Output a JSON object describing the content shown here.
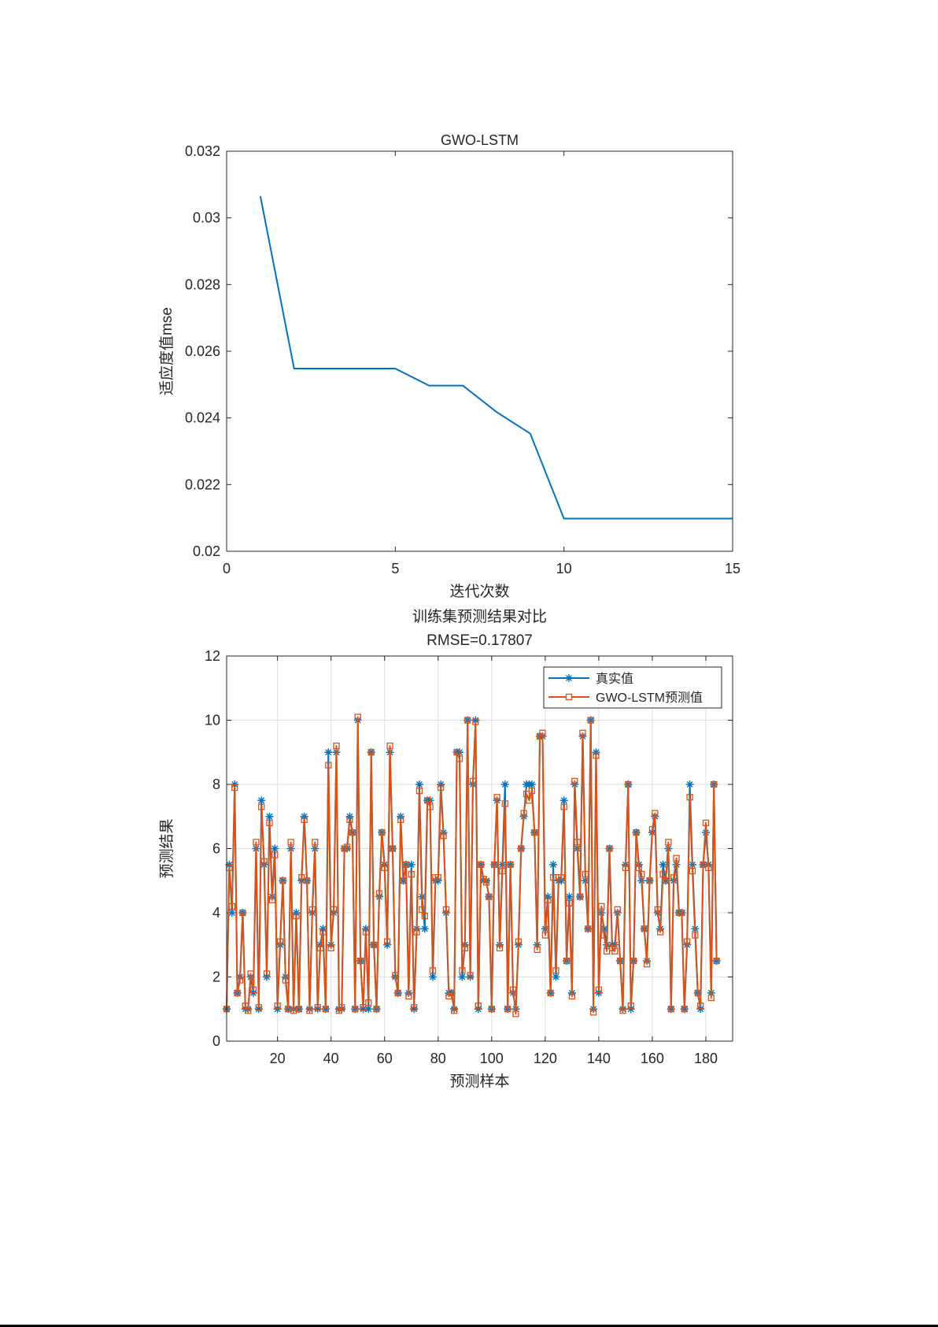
{
  "colors": {
    "series_blue": "#0072BD",
    "series_orange": "#D95319",
    "axis": "#262626",
    "grid": "#dfdfdf"
  },
  "chart_data": [
    {
      "type": "line",
      "title": "GWO-LSTM",
      "xlabel": "迭代次数",
      "ylabel": "适应度值mse",
      "xlim": [
        0,
        15
      ],
      "ylim": [
        0.02,
        0.032
      ],
      "x_ticks": [
        0,
        5,
        10,
        15
      ],
      "x_tick_labels": [
        "0",
        "5",
        "10",
        "15"
      ],
      "y_ticks": [
        0.02,
        0.022,
        0.024,
        0.026,
        0.028,
        0.03,
        0.032
      ],
      "y_tick_labels": [
        "0.02",
        "0.022",
        "0.024",
        "0.026",
        "0.028",
        "0.03",
        "0.032"
      ],
      "grid": false,
      "series": [
        {
          "x": [
            1,
            2,
            3,
            4,
            5,
            6,
            7,
            8,
            9,
            10,
            11,
            12,
            13,
            14,
            15
          ],
          "values": [
            0.03065,
            0.02548,
            0.02548,
            0.02548,
            0.02548,
            0.02497,
            0.02497,
            0.02418,
            0.02353,
            0.02098,
            0.02098,
            0.02098,
            0.02098,
            0.02098,
            0.02098
          ]
        }
      ]
    },
    {
      "type": "line",
      "title": "训练集预测结果对比",
      "subtitle": "RMSE=0.17807",
      "xlabel": "预测样本",
      "ylabel": "预测结果",
      "xlim": [
        1,
        190
      ],
      "ylim": [
        0,
        12
      ],
      "x_ticks": [
        20,
        40,
        60,
        80,
        100,
        120,
        140,
        160,
        180
      ],
      "x_tick_labels": [
        "20",
        "40",
        "60",
        "80",
        "100",
        "120",
        "140",
        "160",
        "180"
      ],
      "y_ticks": [
        0,
        2,
        4,
        6,
        8,
        10,
        12
      ],
      "y_tick_labels": [
        "0",
        "2",
        "4",
        "6",
        "8",
        "10",
        "12"
      ],
      "grid": true,
      "legend_position": "top-right",
      "series": [
        {
          "name": "真实值",
          "marker": "asterisk",
          "values": [
            1,
            5.5,
            4,
            8,
            1.5,
            2,
            4,
            1,
            1,
            2,
            1.5,
            6,
            1,
            7.5,
            5.5,
            2,
            7,
            4.5,
            6,
            1,
            3,
            5,
            2,
            1,
            6,
            1,
            4,
            1,
            5,
            7,
            5,
            1,
            4,
            6,
            1,
            3,
            3.5,
            1,
            9,
            3,
            4,
            9,
            1,
            1,
            6,
            6,
            7,
            6.5,
            1,
            10,
            2.5,
            1,
            3.5,
            1,
            9,
            3,
            1,
            4.5,
            6.5,
            5.5,
            3,
            9,
            6,
            2,
            1.5,
            7,
            5,
            5.5,
            1.5,
            5.5,
            1,
            3.5,
            8,
            4.5,
            3.5,
            7.5,
            7.5,
            2,
            5,
            5,
            8,
            6.5,
            4,
            1.5,
            1.5,
            1,
            9,
            9,
            2,
            3,
            10,
            2,
            8,
            10,
            1,
            5.5,
            5,
            5,
            4.5,
            1,
            5.5,
            7.5,
            3,
            5.5,
            8,
            1,
            5.5,
            1.5,
            1,
            3,
            6,
            7,
            8,
            8,
            8,
            6.5,
            3,
            9.5,
            9.5,
            3.5,
            4.5,
            1.5,
            5.5,
            2,
            5,
            5,
            7.5,
            2.5,
            4.5,
            1.5,
            8,
            6,
            4.5,
            9.5,
            5,
            3.5,
            10,
            1,
            9,
            1.5,
            4,
            3.5,
            3,
            6,
            3,
            3,
            4,
            2.5,
            1,
            5.5,
            8,
            1,
            2.5,
            6.5,
            5.5,
            5,
            3.5,
            2.5,
            5,
            6.5,
            7,
            4,
            3.5,
            5.5,
            5,
            6,
            1,
            5,
            5.5,
            4,
            4,
            1,
            3,
            8,
            5.5,
            3.5,
            1.5,
            1,
            5.5,
            6.5,
            5.5,
            1.5,
            8,
            2.5
          ]
        },
        {
          "name": "GWO-LSTM预测值",
          "marker": "square",
          "values": [
            1,
            5.4,
            4.2,
            7.9,
            1.5,
            1.9,
            4,
            1.1,
            0.95,
            2.1,
            1.6,
            6.2,
            1.05,
            7.3,
            5.6,
            2.1,
            6.8,
            4.4,
            5.8,
            1.1,
            3.1,
            5,
            1.9,
            1,
            6.2,
            0.95,
            3.9,
            1,
            5.1,
            6.9,
            5,
            0.95,
            4.1,
            6.2,
            1.05,
            2.9,
            3.4,
            1,
            8.6,
            2.9,
            4.1,
            9.2,
            0.95,
            1.05,
            6,
            6.05,
            6.9,
            6.5,
            1,
            10.1,
            2.5,
            1.05,
            3.4,
            1.2,
            9,
            3,
            1,
            4.6,
            6.5,
            5.4,
            3.1,
            9.2,
            6,
            2.05,
            1.5,
            6.9,
            5,
            5.5,
            1.4,
            5.2,
            1.05,
            3.4,
            7.8,
            4.1,
            3.9,
            7.5,
            7.3,
            2.2,
            5.1,
            5.1,
            7.9,
            6.4,
            4.1,
            1.4,
            1.5,
            0.95,
            9,
            8.8,
            2.2,
            2.9,
            10,
            2.05,
            8.1,
            9.95,
            1.1,
            5.5,
            5.05,
            4.95,
            4.5,
            1,
            5.5,
            7.6,
            2.9,
            5.3,
            7.4,
            1,
            5.5,
            1.6,
            0.85,
            3.1,
            6,
            7.1,
            7.7,
            7.5,
            7.8,
            6.5,
            2.85,
            9.5,
            9.6,
            3.3,
            4.4,
            1.5,
            5.1,
            2.2,
            5.1,
            5.1,
            7.3,
            2.5,
            4.3,
            1.4,
            8.1,
            6.2,
            4.5,
            9.6,
            5.2,
            3.5,
            10,
            0.9,
            8.9,
            1.6,
            4.2,
            3.3,
            2.8,
            6,
            2.9,
            2.8,
            4.1,
            2.5,
            0.95,
            5.4,
            8,
            1.1,
            2.5,
            6.5,
            5.4,
            5.2,
            3.5,
            2.4,
            5,
            6.6,
            7.1,
            4.1,
            3.4,
            5.2,
            5,
            6.2,
            1,
            5.1,
            5.7,
            4,
            4,
            1,
            3.1,
            7.6,
            5.3,
            3.3,
            1.5,
            1.1,
            5.5,
            6.8,
            5.4,
            1.35,
            8,
            2.5
          ]
        }
      ]
    }
  ]
}
